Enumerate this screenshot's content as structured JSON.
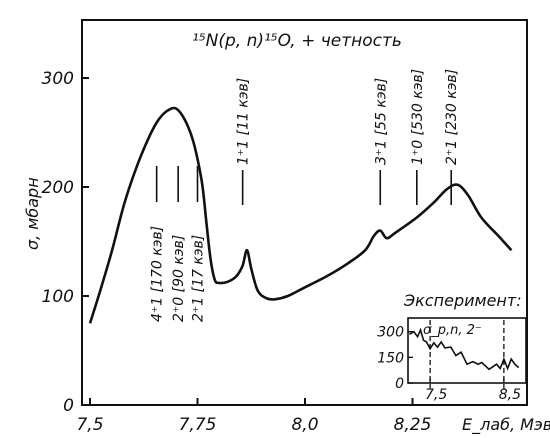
{
  "chart_data": {
    "type": "line",
    "title": "¹⁵N(p, n)¹⁵O, + четность",
    "xlabel": "E_лаб, Мэв",
    "ylabel": "σ, мбарн",
    "xlim": [
      7.5,
      8.5
    ],
    "ylim": [
      0,
      350
    ],
    "xticks": [
      "7,5",
      "7,75",
      "8,0",
      "8,25"
    ],
    "yticks": [
      "0",
      "100",
      "200",
      "300"
    ],
    "curve": {
      "x": [
        7.5,
        7.52,
        7.55,
        7.58,
        7.61,
        7.64,
        7.66,
        7.68,
        7.7,
        7.72,
        7.74,
        7.76,
        7.77,
        7.78,
        7.79,
        7.8,
        7.82,
        7.84,
        7.855,
        7.865,
        7.875,
        7.89,
        7.91,
        7.93,
        7.96,
        8.0,
        8.05,
        8.1,
        8.14,
        8.16,
        8.175,
        8.19,
        8.21,
        8.26,
        8.3,
        8.33,
        8.355,
        8.38,
        8.41,
        8.45,
        8.48
      ],
      "y": [
        75,
        100,
        140,
        185,
        220,
        248,
        262,
        270,
        272,
        262,
        242,
        205,
        170,
        135,
        115,
        112,
        113,
        118,
        128,
        142,
        125,
        105,
        98,
        97,
        100,
        108,
        118,
        130,
        142,
        155,
        160,
        153,
        158,
        172,
        186,
        198,
        202,
        192,
        172,
        155,
        142
      ]
    },
    "annotations": [
      {
        "text": "4⁺1 [170 кэв]",
        "x": 7.655,
        "orientation": "down"
      },
      {
        "text": "2⁺0 [90 кэв]",
        "x": 7.705,
        "orientation": "down"
      },
      {
        "text": "2⁺1 [17 кэв]",
        "x": 7.75,
        "orientation": "down"
      },
      {
        "text": "1⁺1 [11 кэв]",
        "x": 7.855,
        "orientation": "up"
      },
      {
        "text": "3⁺1 [55 кэв]",
        "x": 8.175,
        "orientation": "up"
      },
      {
        "text": "1⁺0 [530 кэв]",
        "x": 8.26,
        "orientation": "up"
      },
      {
        "text": "2⁺1 [230 кэв]",
        "x": 8.34,
        "orientation": "up"
      }
    ],
    "inset": {
      "title": "Эксперимент:",
      "label": "σ_p,n, 2⁻",
      "xlim": [
        7.2,
        8.8
      ],
      "ylim": [
        0,
        380
      ],
      "xticks": [
        "7,5",
        "8,5"
      ],
      "yticks": [
        "0",
        "150",
        "300"
      ],
      "x": [
        7.22,
        7.28,
        7.33,
        7.37,
        7.41,
        7.45,
        7.5,
        7.55,
        7.6,
        7.65,
        7.7,
        7.78,
        7.85,
        7.92,
        8.0,
        8.08,
        8.15,
        8.2,
        8.3,
        8.4,
        8.45,
        8.5,
        8.55,
        8.6,
        8.65,
        8.7
      ],
      "y": [
        285,
        300,
        270,
        310,
        250,
        240,
        200,
        235,
        210,
        240,
        205,
        210,
        160,
        180,
        110,
        125,
        110,
        120,
        80,
        110,
        85,
        140,
        85,
        140,
        110,
        90
      ],
      "dashed_at": [
        7.5,
        8.5
      ]
    }
  }
}
